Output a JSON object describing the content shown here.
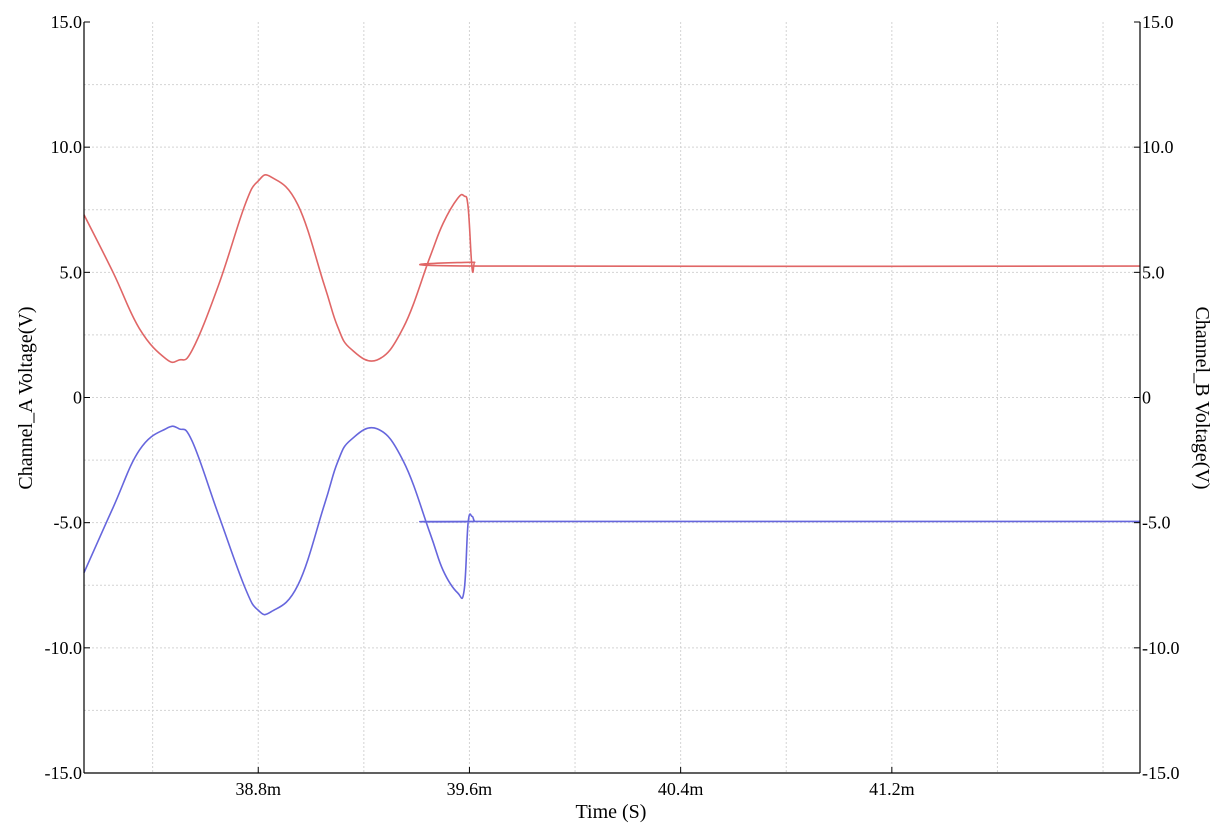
{
  "chart_data": {
    "type": "line",
    "xlabel": "Time (S)",
    "ylabel_left": "Channel_A Voltage(V)",
    "ylabel_right": "Channel_B Voltage(V)",
    "xlim": [
      0.03814,
      0.04214
    ],
    "ylim": [
      -15,
      15
    ],
    "x_ticks": [
      0.0388,
      0.0396,
      0.0404,
      0.0412
    ],
    "x_tick_labels": [
      "38.8m",
      "39.6m",
      "40.4m",
      "41.2m"
    ],
    "y_ticks": [
      -15,
      -10,
      -5,
      0,
      5,
      10,
      15
    ],
    "y_tick_labels_left": [
      "-15.0",
      "-10.0",
      "-5.0",
      "0",
      "5.0",
      "10.0",
      "15.0"
    ],
    "y_tick_labels_right": [
      "-15.0",
      "-10.0",
      "-5.0",
      "0",
      "5.0",
      "10.0",
      "15.0"
    ],
    "grid": true,
    "series": [
      {
        "color": "#e06666",
        "x": [
          0.03814,
          0.03825,
          0.03835,
          0.03845,
          0.0385,
          0.03855,
          0.03865,
          0.03875,
          0.0388,
          0.03885,
          0.03895,
          0.03905,
          0.0391,
          0.03915,
          0.03925,
          0.03935,
          0.03945,
          0.0395,
          0.039555,
          0.03958,
          0.039595,
          0.03961,
          0.03962,
          0.03964,
          0.04214
        ],
        "y": [
          7.3,
          5.0,
          2.75,
          1.55,
          1.5,
          1.9,
          4.5,
          7.7,
          8.65,
          8.8,
          7.7,
          4.5,
          2.85,
          1.95,
          1.5,
          2.8,
          5.6,
          6.95,
          7.95,
          8.05,
          7.6,
          5.15,
          5.4,
          5.25,
          5.25
        ]
      },
      {
        "color": "#6666dd",
        "x": [
          0.03814,
          0.03825,
          0.03835,
          0.03845,
          0.0385,
          0.03855,
          0.03865,
          0.03875,
          0.0388,
          0.03885,
          0.03895,
          0.03905,
          0.0391,
          0.03915,
          0.03925,
          0.03935,
          0.03945,
          0.0395,
          0.039555,
          0.03958,
          0.039595,
          0.03961,
          0.03962,
          0.03964,
          0.04214
        ],
        "y": [
          -7.0,
          -4.4,
          -2.1,
          -1.25,
          -1.25,
          -1.75,
          -4.7,
          -7.6,
          -8.5,
          -8.55,
          -7.5,
          -4.3,
          -2.6,
          -1.7,
          -1.25,
          -2.55,
          -5.4,
          -6.9,
          -7.8,
          -7.7,
          -5.0,
          -4.75,
          -4.95,
          -4.95,
          -4.95
        ]
      }
    ]
  }
}
